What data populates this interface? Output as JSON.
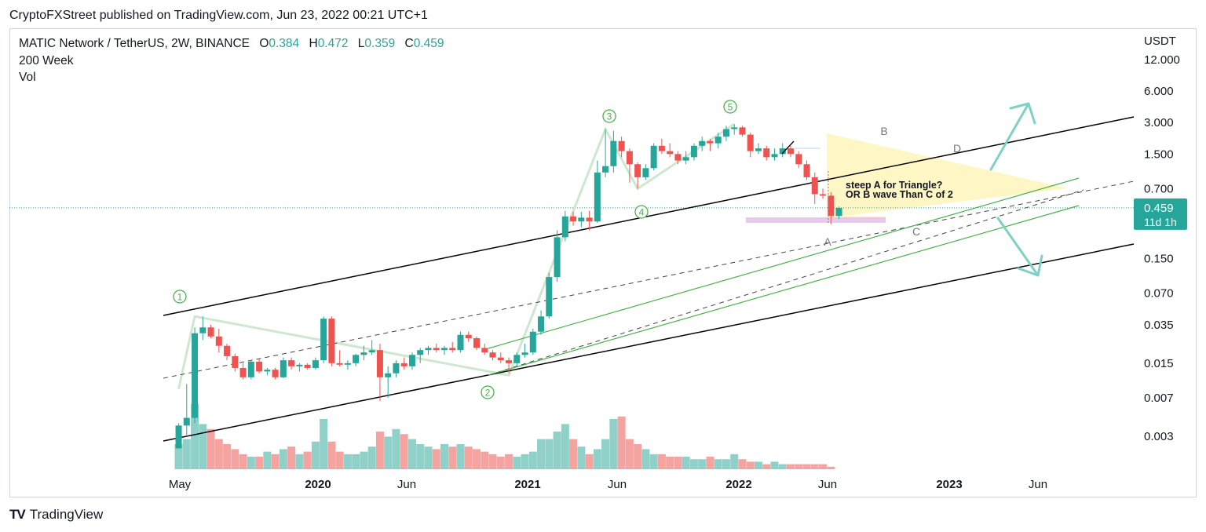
{
  "publication": {
    "text": "CryptoFXStreet published on TradingView.com, Jun 23, 2022 00:21 UTC+1"
  },
  "legend": {
    "symbol": "MATIC Network / TetherUS, 2W, BINANCE",
    "open_label": "O",
    "open": "0.384",
    "high_label": "H",
    "high": "0.472",
    "low_label": "L",
    "low": "0.359",
    "close_label": "C",
    "close": "0.459",
    "indicators": [
      "200 Week",
      "Vol"
    ]
  },
  "price_axis": {
    "currency": "USDT",
    "ticks": [
      "12.000",
      "6.000",
      "3.000",
      "1.500",
      "0.700",
      "0.150",
      "0.070",
      "0.035",
      "0.015",
      "0.007",
      "0.003"
    ],
    "current_price": "0.459",
    "countdown": "11d 1h"
  },
  "time_axis": {
    "ticks": [
      "May",
      "2020",
      "Jun",
      "2021",
      "Jun",
      "2022",
      "Jun",
      "2023",
      "Jun"
    ],
    "bold": [
      false,
      true,
      false,
      true,
      false,
      true,
      false,
      true,
      false
    ]
  },
  "annotations": {
    "note_line1": "steep A for Triangle?",
    "note_line2": "OR B wave Than C of 2",
    "waves": [
      "1",
      "2",
      "3",
      "4",
      "5"
    ],
    "triangle_labels": [
      "B",
      "D",
      "A",
      "C"
    ]
  },
  "footer": {
    "brand_mark": "TV",
    "brand": "TradingView"
  },
  "colors": {
    "up": "#26a69a",
    "down": "#ef5350",
    "vol_up": "#8fd0c9",
    "vol_down": "#f5a3a1",
    "wave_label": "#4caf50",
    "channel": "#000000",
    "triangle_fill": "#fff5c2",
    "projection_arrow": "#7fd0c6",
    "support_box": "#e8c8ef"
  },
  "chart_data": {
    "type": "candlestick",
    "title": "MATIC Network / TetherUS, 2W, BINANCE",
    "interval": "2W",
    "y_scale": "log",
    "ylabel": "USDT",
    "ylim": [
      0.0018,
      18
    ],
    "x_range": [
      "2019-04-22",
      "2023-09-01"
    ],
    "candles": [
      {
        "d": "2019-04-29",
        "o": 0.0023,
        "h": 0.004,
        "l": 0.0023,
        "c": 0.0038
      },
      {
        "d": "2019-05-13",
        "o": 0.0038,
        "h": 0.0095,
        "l": 0.003,
        "c": 0.0045
      },
      {
        "d": "2019-05-27",
        "o": 0.0045,
        "h": 0.033,
        "l": 0.004,
        "c": 0.029
      },
      {
        "d": "2019-06-10",
        "o": 0.029,
        "h": 0.042,
        "l": 0.025,
        "c": 0.033
      },
      {
        "d": "2019-06-24",
        "o": 0.033,
        "h": 0.035,
        "l": 0.026,
        "c": 0.027
      },
      {
        "d": "2019-07-08",
        "o": 0.027,
        "h": 0.032,
        "l": 0.019,
        "c": 0.022
      },
      {
        "d": "2019-07-22",
        "o": 0.022,
        "h": 0.023,
        "l": 0.016,
        "c": 0.0175
      },
      {
        "d": "2019-08-05",
        "o": 0.0175,
        "h": 0.0185,
        "l": 0.0125,
        "c": 0.0135
      },
      {
        "d": "2019-08-19",
        "o": 0.0135,
        "h": 0.015,
        "l": 0.0105,
        "c": 0.011
      },
      {
        "d": "2019-09-02",
        "o": 0.011,
        "h": 0.016,
        "l": 0.0105,
        "c": 0.0155
      },
      {
        "d": "2019-09-16",
        "o": 0.0155,
        "h": 0.0165,
        "l": 0.012,
        "c": 0.0125
      },
      {
        "d": "2019-09-30",
        "o": 0.0125,
        "h": 0.0135,
        "l": 0.0115,
        "c": 0.013
      },
      {
        "d": "2019-10-14",
        "o": 0.013,
        "h": 0.0135,
        "l": 0.0105,
        "c": 0.011
      },
      {
        "d": "2019-10-28",
        "o": 0.011,
        "h": 0.017,
        "l": 0.0108,
        "c": 0.016
      },
      {
        "d": "2019-11-11",
        "o": 0.016,
        "h": 0.017,
        "l": 0.013,
        "c": 0.014
      },
      {
        "d": "2019-11-25",
        "o": 0.014,
        "h": 0.015,
        "l": 0.0125,
        "c": 0.0145
      },
      {
        "d": "2019-12-09",
        "o": 0.0145,
        "h": 0.015,
        "l": 0.013,
        "c": 0.0135
      },
      {
        "d": "2019-12-23",
        "o": 0.0135,
        "h": 0.017,
        "l": 0.013,
        "c": 0.016
      },
      {
        "d": "2020-01-06",
        "o": 0.016,
        "h": 0.042,
        "l": 0.015,
        "c": 0.04
      },
      {
        "d": "2020-01-20",
        "o": 0.04,
        "h": 0.042,
        "l": 0.014,
        "c": 0.015
      },
      {
        "d": "2020-02-03",
        "o": 0.015,
        "h": 0.02,
        "l": 0.014,
        "c": 0.0145
      },
      {
        "d": "2020-02-17",
        "o": 0.0145,
        "h": 0.016,
        "l": 0.013,
        "c": 0.015
      },
      {
        "d": "2020-03-02",
        "o": 0.015,
        "h": 0.0185,
        "l": 0.014,
        "c": 0.018
      },
      {
        "d": "2020-03-16",
        "o": 0.018,
        "h": 0.022,
        "l": 0.016,
        "c": 0.019
      },
      {
        "d": "2020-03-30",
        "o": 0.019,
        "h": 0.025,
        "l": 0.018,
        "c": 0.02
      },
      {
        "d": "2020-04-13",
        "o": 0.02,
        "h": 0.023,
        "l": 0.0065,
        "c": 0.011
      },
      {
        "d": "2020-04-27",
        "o": 0.011,
        "h": 0.014,
        "l": 0.007,
        "c": 0.012
      },
      {
        "d": "2020-05-11",
        "o": 0.012,
        "h": 0.016,
        "l": 0.011,
        "c": 0.015
      },
      {
        "d": "2020-05-25",
        "o": 0.015,
        "h": 0.017,
        "l": 0.013,
        "c": 0.014
      },
      {
        "d": "2020-06-08",
        "o": 0.014,
        "h": 0.019,
        "l": 0.013,
        "c": 0.018
      },
      {
        "d": "2020-06-22",
        "o": 0.018,
        "h": 0.021,
        "l": 0.015,
        "c": 0.02
      },
      {
        "d": "2020-07-06",
        "o": 0.02,
        "h": 0.022,
        "l": 0.018,
        "c": 0.021
      },
      {
        "d": "2020-07-20",
        "o": 0.021,
        "h": 0.023,
        "l": 0.019,
        "c": 0.02
      },
      {
        "d": "2020-08-03",
        "o": 0.02,
        "h": 0.022,
        "l": 0.018,
        "c": 0.021
      },
      {
        "d": "2020-08-17",
        "o": 0.021,
        "h": 0.024,
        "l": 0.019,
        "c": 0.02
      },
      {
        "d": "2020-08-31",
        "o": 0.02,
        "h": 0.03,
        "l": 0.019,
        "c": 0.028
      },
      {
        "d": "2020-09-14",
        "o": 0.028,
        "h": 0.03,
        "l": 0.024,
        "c": 0.026
      },
      {
        "d": "2020-09-28",
        "o": 0.026,
        "h": 0.027,
        "l": 0.02,
        "c": 0.021
      },
      {
        "d": "2020-10-12",
        "o": 0.021,
        "h": 0.023,
        "l": 0.018,
        "c": 0.019
      },
      {
        "d": "2020-10-26",
        "o": 0.019,
        "h": 0.02,
        "l": 0.016,
        "c": 0.017
      },
      {
        "d": "2020-11-09",
        "o": 0.017,
        "h": 0.019,
        "l": 0.015,
        "c": 0.016
      },
      {
        "d": "2020-11-23",
        "o": 0.016,
        "h": 0.017,
        "l": 0.012,
        "c": 0.015
      },
      {
        "d": "2020-12-07",
        "o": 0.015,
        "h": 0.019,
        "l": 0.014,
        "c": 0.018
      },
      {
        "d": "2020-12-21",
        "o": 0.018,
        "h": 0.023,
        "l": 0.017,
        "c": 0.019
      },
      {
        "d": "2021-01-04",
        "o": 0.019,
        "h": 0.032,
        "l": 0.018,
        "c": 0.03
      },
      {
        "d": "2021-01-18",
        "o": 0.03,
        "h": 0.048,
        "l": 0.028,
        "c": 0.042
      },
      {
        "d": "2021-02-01",
        "o": 0.042,
        "h": 0.11,
        "l": 0.04,
        "c": 0.1
      },
      {
        "d": "2021-02-15",
        "o": 0.1,
        "h": 0.28,
        "l": 0.09,
        "c": 0.24
      },
      {
        "d": "2021-03-01",
        "o": 0.24,
        "h": 0.43,
        "l": 0.22,
        "c": 0.38
      },
      {
        "d": "2021-03-15",
        "o": 0.38,
        "h": 0.42,
        "l": 0.31,
        "c": 0.34
      },
      {
        "d": "2021-03-29",
        "o": 0.34,
        "h": 0.42,
        "l": 0.3,
        "c": 0.37
      },
      {
        "d": "2021-04-12",
        "o": 0.37,
        "h": 0.43,
        "l": 0.28,
        "c": 0.34
      },
      {
        "d": "2021-04-26",
        "o": 0.34,
        "h": 1.3,
        "l": 0.33,
        "c": 1.0
      },
      {
        "d": "2021-05-10",
        "o": 1.0,
        "h": 2.6,
        "l": 0.9,
        "c": 1.15
      },
      {
        "d": "2021-05-24",
        "o": 1.15,
        "h": 2.5,
        "l": 1.0,
        "c": 2.0
      },
      {
        "d": "2021-06-07",
        "o": 2.0,
        "h": 2.2,
        "l": 1.4,
        "c": 1.6
      },
      {
        "d": "2021-06-21",
        "o": 1.6,
        "h": 1.7,
        "l": 0.8,
        "c": 1.2
      },
      {
        "d": "2021-07-05",
        "o": 1.2,
        "h": 1.25,
        "l": 0.7,
        "c": 0.9
      },
      {
        "d": "2021-07-19",
        "o": 0.9,
        "h": 1.2,
        "l": 0.85,
        "c": 1.1
      },
      {
        "d": "2021-08-02",
        "o": 1.1,
        "h": 1.9,
        "l": 1.05,
        "c": 1.8
      },
      {
        "d": "2021-08-16",
        "o": 1.8,
        "h": 2.1,
        "l": 1.5,
        "c": 1.6
      },
      {
        "d": "2021-08-30",
        "o": 1.6,
        "h": 1.9,
        "l": 1.4,
        "c": 1.5
      },
      {
        "d": "2021-09-13",
        "o": 1.5,
        "h": 1.6,
        "l": 1.2,
        "c": 1.3
      },
      {
        "d": "2021-09-27",
        "o": 1.3,
        "h": 1.6,
        "l": 1.2,
        "c": 1.4
      },
      {
        "d": "2021-10-11",
        "o": 1.4,
        "h": 1.9,
        "l": 1.3,
        "c": 1.8
      },
      {
        "d": "2021-10-25",
        "o": 1.8,
        "h": 2.2,
        "l": 1.6,
        "c": 2.0
      },
      {
        "d": "2021-11-08",
        "o": 2.0,
        "h": 2.1,
        "l": 1.6,
        "c": 1.9
      },
      {
        "d": "2021-11-22",
        "o": 1.9,
        "h": 2.4,
        "l": 1.7,
        "c": 2.2
      },
      {
        "d": "2021-12-06",
        "o": 2.2,
        "h": 2.8,
        "l": 2.0,
        "c": 2.6
      },
      {
        "d": "2021-12-20",
        "o": 2.6,
        "h": 2.9,
        "l": 2.3,
        "c": 2.7
      },
      {
        "d": "2022-01-03",
        "o": 2.7,
        "h": 2.8,
        "l": 2.2,
        "c": 2.3
      },
      {
        "d": "2022-01-17",
        "o": 2.3,
        "h": 2.4,
        "l": 1.4,
        "c": 1.6
      },
      {
        "d": "2022-01-31",
        "o": 1.6,
        "h": 1.9,
        "l": 1.5,
        "c": 1.7
      },
      {
        "d": "2022-02-14",
        "o": 1.7,
        "h": 1.8,
        "l": 1.3,
        "c": 1.4
      },
      {
        "d": "2022-02-28",
        "o": 1.4,
        "h": 1.7,
        "l": 1.3,
        "c": 1.5
      },
      {
        "d": "2022-03-14",
        "o": 1.5,
        "h": 1.9,
        "l": 1.4,
        "c": 1.7
      },
      {
        "d": "2022-03-28",
        "o": 1.7,
        "h": 1.8,
        "l": 1.4,
        "c": 1.5
      },
      {
        "d": "2022-04-11",
        "o": 1.5,
        "h": 1.6,
        "l": 1.1,
        "c": 1.2
      },
      {
        "d": "2022-04-25",
        "o": 1.2,
        "h": 1.3,
        "l": 0.85,
        "c": 0.9
      },
      {
        "d": "2022-05-09",
        "o": 0.9,
        "h": 1.0,
        "l": 0.5,
        "c": 0.62
      },
      {
        "d": "2022-05-23",
        "o": 0.62,
        "h": 0.7,
        "l": 0.56,
        "c": 0.6
      },
      {
        "d": "2022-06-06",
        "o": 0.6,
        "h": 0.65,
        "l": 0.32,
        "c": 0.384
      },
      {
        "d": "2022-06-20",
        "o": 0.384,
        "h": 0.472,
        "l": 0.359,
        "c": 0.459
      }
    ],
    "volume": [
      10,
      12,
      26,
      18,
      16,
      12,
      10,
      8,
      6,
      5,
      5,
      7,
      6,
      8,
      9,
      6,
      7,
      11,
      20,
      11,
      7,
      6,
      6,
      7,
      9,
      15,
      13,
      16,
      14,
      12,
      10,
      9,
      8,
      10,
      9,
      10,
      9,
      8,
      7,
      6,
      5,
      6,
      5,
      6,
      7,
      12,
      12,
      15,
      18,
      12,
      9,
      6,
      8,
      12,
      20,
      21,
      12,
      10,
      8,
      6,
      6,
      5,
      5,
      5,
      4,
      4,
      5,
      4,
      4,
      6,
      4,
      3,
      3,
      2,
      3,
      2,
      2,
      2,
      2,
      2,
      2,
      1
    ],
    "wave_points": [
      {
        "label": "1",
        "d": "2019-05-27",
        "price": 0.042
      },
      {
        "label": "2",
        "d": "2020-11-23",
        "price": 0.0115
      },
      {
        "label": "3",
        "d": "2021-05-10",
        "price": 2.6
      },
      {
        "label": "4",
        "d": "2021-07-05",
        "price": 0.7
      },
      {
        "label": "5",
        "d": "2021-12-20",
        "price": 2.9
      }
    ],
    "projection": {
      "triangle_apex": "2023-08-01",
      "bullish_target_date": "2023-06-01",
      "bullish_target": 4.5,
      "bearish_target_date": "2023-06-01",
      "bearish_target": 0.1
    },
    "last_price": 0.459
  }
}
